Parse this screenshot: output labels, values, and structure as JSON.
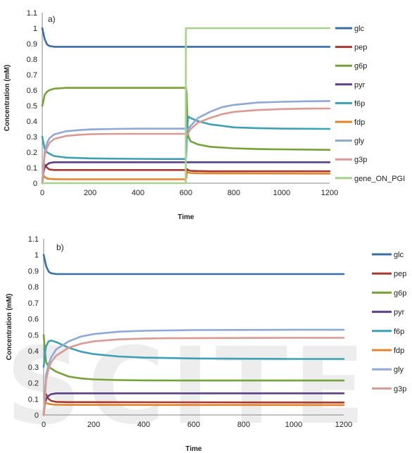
{
  "colors": {
    "glc": "#3a6ea5",
    "pep": "#a63a32",
    "g6p": "#77a13b",
    "pyr": "#5d3f86",
    "f6p": "#3fa0b3",
    "fdp": "#e0852c",
    "gly": "#8fa8d6",
    "g3p": "#d99a94",
    "gene_ON_PGI": "#a9d18e",
    "axis": "#888888",
    "text": "#222222"
  },
  "watermark": {
    "text": "SCITE"
  },
  "chart_data": [
    {
      "type": "line",
      "panel_label": "a)",
      "xlabel": "Time",
      "ylabel": "Concentration (mM)",
      "xlim": [
        0,
        1200
      ],
      "ylim": [
        0,
        1.1
      ],
      "xticks": [
        "0",
        "200",
        "400",
        "600",
        "800",
        "1000",
        "1200"
      ],
      "yticks": [
        "0",
        "0.1",
        "0.2",
        "0.3",
        "0.4",
        "0.5",
        "0.6",
        "0.7",
        "0.8",
        "0.9",
        "1",
        "1.1"
      ],
      "grid": false,
      "legend_position": "right",
      "series": [
        {
          "name": "glc",
          "color_key": "glc",
          "x": [
            0,
            10,
            20,
            30,
            50,
            1200
          ],
          "y": [
            1.0,
            0.93,
            0.895,
            0.885,
            0.88,
            0.88
          ]
        },
        {
          "name": "pep",
          "color_key": "pep",
          "x": [
            0,
            5,
            10,
            15,
            20,
            30,
            50,
            100,
            600,
            602,
            605,
            610,
            620,
            650,
            700,
            1200
          ],
          "y": [
            0.0,
            0.09,
            0.12,
            0.11,
            0.1,
            0.088,
            0.085,
            0.085,
            0.085,
            0.07,
            0.09,
            0.083,
            0.08,
            0.078,
            0.077,
            0.077
          ]
        },
        {
          "name": "g6p",
          "color_key": "g6p",
          "x": [
            0,
            5,
            10,
            20,
            30,
            50,
            100,
            300,
            598,
            600,
            603,
            606,
            610,
            620,
            650,
            700,
            800,
            900,
            1000,
            1200
          ],
          "y": [
            0.5,
            0.53,
            0.57,
            0.59,
            0.6,
            0.61,
            0.615,
            0.615,
            0.615,
            0.62,
            0.58,
            0.4,
            0.3,
            0.27,
            0.25,
            0.235,
            0.225,
            0.22,
            0.218,
            0.215
          ]
        },
        {
          "name": "pyr",
          "color_key": "pyr",
          "x": [
            0,
            5,
            10,
            20,
            30,
            50,
            100,
            1200
          ],
          "y": [
            0.0,
            0.07,
            0.1,
            0.12,
            0.13,
            0.135,
            0.135,
            0.135
          ]
        },
        {
          "name": "f6p",
          "color_key": "f6p",
          "x": [
            0,
            5,
            10,
            20,
            30,
            50,
            100,
            200,
            300,
            400,
            500,
            598,
            600,
            603,
            606,
            610,
            620,
            650,
            700,
            750,
            800,
            900,
            1000,
            1200
          ],
          "y": [
            0.3,
            0.26,
            0.22,
            0.2,
            0.19,
            0.175,
            0.165,
            0.16,
            0.158,
            0.157,
            0.156,
            0.156,
            0.16,
            0.25,
            0.38,
            0.43,
            0.42,
            0.4,
            0.38,
            0.37,
            0.36,
            0.355,
            0.352,
            0.35
          ]
        },
        {
          "name": "fdp",
          "color_key": "fdp",
          "x": [
            0,
            5,
            10,
            20,
            30,
            50,
            100,
            600,
            602,
            604,
            610,
            620,
            650,
            700,
            1200
          ],
          "y": [
            0.0,
            0.05,
            0.04,
            0.03,
            0.028,
            0.026,
            0.025,
            0.025,
            0.04,
            0.07,
            0.068,
            0.066,
            0.064,
            0.063,
            0.062
          ]
        },
        {
          "name": "gly",
          "color_key": "gly",
          "x": [
            0,
            10,
            20,
            30,
            50,
            100,
            150,
            200,
            300,
            400,
            500,
            598,
            600,
            605,
            610,
            620,
            650,
            700,
            750,
            800,
            900,
            1000,
            1100,
            1200
          ],
          "y": [
            0.0,
            0.2,
            0.26,
            0.29,
            0.315,
            0.335,
            0.342,
            0.347,
            0.35,
            0.352,
            0.352,
            0.352,
            0.35,
            0.34,
            0.35,
            0.37,
            0.42,
            0.46,
            0.49,
            0.505,
            0.52,
            0.525,
            0.528,
            0.53
          ]
        },
        {
          "name": "g3p",
          "color_key": "g3p",
          "x": [
            0,
            10,
            20,
            30,
            50,
            100,
            150,
            200,
            300,
            400,
            500,
            598,
            600,
            605,
            610,
            620,
            650,
            700,
            750,
            800,
            900,
            1000,
            1100,
            1200
          ],
          "y": [
            0.0,
            0.18,
            0.23,
            0.26,
            0.285,
            0.305,
            0.312,
            0.316,
            0.318,
            0.318,
            0.318,
            0.318,
            0.316,
            0.31,
            0.325,
            0.35,
            0.39,
            0.42,
            0.445,
            0.46,
            0.472,
            0.478,
            0.481,
            0.482
          ]
        },
        {
          "name": "gene_ON_PGI",
          "color_key": "gene_ON_PGI",
          "x": [
            0,
            599,
            600,
            1200
          ],
          "y": [
            0,
            0,
            1,
            1
          ]
        }
      ]
    },
    {
      "type": "line",
      "panel_label": "b)",
      "xlabel": "Time",
      "ylabel": "Concentration (mM)",
      "xlim": [
        0,
        1200
      ],
      "ylim": [
        0,
        1.1
      ],
      "xticks": [
        "0",
        "200",
        "400",
        "600",
        "800",
        "1000",
        "1200"
      ],
      "yticks": [
        "0",
        "0.1",
        "0.2",
        "0.3",
        "0.4",
        "0.5",
        "0.6",
        "0.7",
        "0.8",
        "0.9",
        "1",
        "1.1"
      ],
      "grid": false,
      "legend_position": "right",
      "series": [
        {
          "name": "glc",
          "color_key": "glc",
          "x": [
            0,
            10,
            20,
            30,
            50,
            1200
          ],
          "y": [
            1.0,
            0.93,
            0.895,
            0.885,
            0.88,
            0.88
          ]
        },
        {
          "name": "pep",
          "color_key": "pep",
          "x": [
            0,
            5,
            10,
            15,
            20,
            30,
            50,
            100,
            1200
          ],
          "y": [
            0.0,
            0.12,
            0.13,
            0.11,
            0.1,
            0.088,
            0.082,
            0.08,
            0.078
          ]
        },
        {
          "name": "g6p",
          "color_key": "g6p",
          "x": [
            0,
            5,
            10,
            20,
            30,
            50,
            100,
            150,
            200,
            300,
            400,
            600,
            800,
            1200
          ],
          "y": [
            0.5,
            0.4,
            0.33,
            0.3,
            0.29,
            0.27,
            0.24,
            0.228,
            0.222,
            0.218,
            0.216,
            0.215,
            0.215,
            0.215
          ]
        },
        {
          "name": "pyr",
          "color_key": "pyr",
          "x": [
            0,
            5,
            10,
            20,
            30,
            50,
            100,
            1200
          ],
          "y": [
            0.0,
            0.07,
            0.1,
            0.12,
            0.13,
            0.135,
            0.135,
            0.135
          ]
        },
        {
          "name": "f6p",
          "color_key": "f6p",
          "x": [
            0,
            5,
            10,
            20,
            30,
            50,
            100,
            150,
            200,
            300,
            400,
            600,
            800,
            1000,
            1200
          ],
          "y": [
            0.3,
            0.38,
            0.43,
            0.46,
            0.465,
            0.455,
            0.42,
            0.395,
            0.38,
            0.365,
            0.358,
            0.353,
            0.351,
            0.35,
            0.35
          ]
        },
        {
          "name": "fdp",
          "color_key": "fdp",
          "x": [
            0,
            5,
            10,
            20,
            30,
            50,
            100,
            1200
          ],
          "y": [
            0.0,
            0.08,
            0.075,
            0.07,
            0.066,
            0.064,
            0.063,
            0.062
          ]
        },
        {
          "name": "gly",
          "color_key": "gly",
          "x": [
            0,
            10,
            20,
            30,
            50,
            100,
            150,
            200,
            300,
            400,
            500,
            600,
            800,
            1000,
            1200
          ],
          "y": [
            0.0,
            0.25,
            0.32,
            0.36,
            0.41,
            0.46,
            0.49,
            0.505,
            0.52,
            0.526,
            0.528,
            0.53,
            0.531,
            0.532,
            0.532
          ]
        },
        {
          "name": "g3p",
          "color_key": "g3p",
          "x": [
            0,
            10,
            20,
            30,
            50,
            100,
            150,
            200,
            300,
            400,
            500,
            600,
            800,
            1000,
            1200
          ],
          "y": [
            0.0,
            0.22,
            0.29,
            0.33,
            0.37,
            0.42,
            0.445,
            0.46,
            0.472,
            0.477,
            0.479,
            0.48,
            0.481,
            0.482,
            0.482
          ]
        }
      ]
    }
  ]
}
